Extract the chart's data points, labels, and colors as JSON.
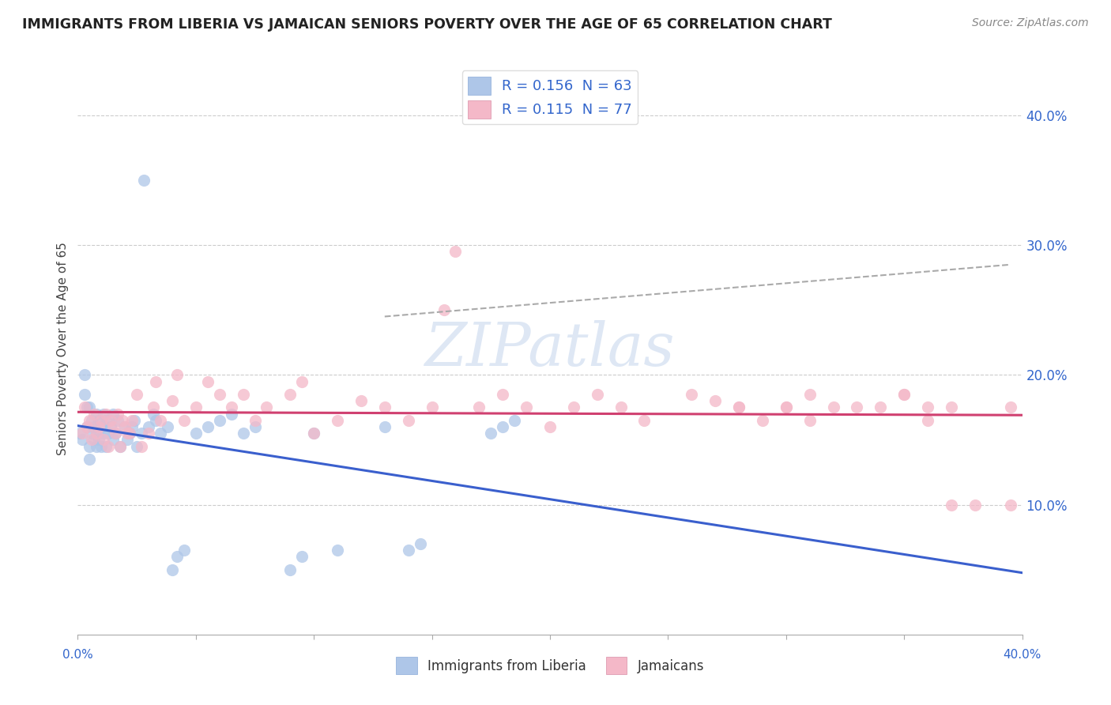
{
  "title": "IMMIGRANTS FROM LIBERIA VS JAMAICAN SENIORS POVERTY OVER THE AGE OF 65 CORRELATION CHART",
  "source": "Source: ZipAtlas.com",
  "ylabel": "Seniors Poverty Over the Age of 65",
  "legend1_text": "R = 0.156  N = 63",
  "legend2_text": "R = 0.115  N = 77",
  "legend1_face": "#aec6e8",
  "legend2_face": "#f4b8c8",
  "line1_color": "#3a5fcd",
  "line2_color": "#d04070",
  "watermark": "ZIPatlas",
  "xlim": [
    0.0,
    0.4
  ],
  "ylim": [
    0.0,
    0.44
  ],
  "background_color": "#ffffff",
  "grid_color": "#cccccc",
  "right_yticks": [
    0.1,
    0.2,
    0.3,
    0.4
  ],
  "right_ytick_labels": [
    "10.0%",
    "20.0%",
    "30.0%",
    "40.0%"
  ],
  "liberia_x": [
    0.001,
    0.002,
    0.003,
    0.003,
    0.004,
    0.004,
    0.005,
    0.005,
    0.005,
    0.006,
    0.006,
    0.007,
    0.007,
    0.008,
    0.008,
    0.008,
    0.009,
    0.009,
    0.01,
    0.01,
    0.011,
    0.011,
    0.012,
    0.012,
    0.013,
    0.014,
    0.015,
    0.015,
    0.016,
    0.017,
    0.018,
    0.02,
    0.021,
    0.022,
    0.023,
    0.024,
    0.025,
    0.027,
    0.028,
    0.03,
    0.032,
    0.033,
    0.035,
    0.038,
    0.04,
    0.042,
    0.045,
    0.05,
    0.055,
    0.06,
    0.065,
    0.07,
    0.075,
    0.09,
    0.095,
    0.1,
    0.11,
    0.13,
    0.14,
    0.145,
    0.175,
    0.18,
    0.185
  ],
  "liberia_y": [
    0.155,
    0.15,
    0.185,
    0.2,
    0.175,
    0.16,
    0.135,
    0.145,
    0.175,
    0.155,
    0.165,
    0.15,
    0.16,
    0.145,
    0.155,
    0.17,
    0.15,
    0.165,
    0.145,
    0.16,
    0.155,
    0.17,
    0.145,
    0.165,
    0.155,
    0.16,
    0.15,
    0.17,
    0.155,
    0.165,
    0.145,
    0.16,
    0.15,
    0.155,
    0.16,
    0.165,
    0.145,
    0.155,
    0.35,
    0.16,
    0.17,
    0.165,
    0.155,
    0.16,
    0.05,
    0.06,
    0.065,
    0.155,
    0.16,
    0.165,
    0.17,
    0.155,
    0.16,
    0.05,
    0.06,
    0.155,
    0.065,
    0.16,
    0.065,
    0.07,
    0.155,
    0.16,
    0.165
  ],
  "jamaican_x": [
    0.002,
    0.003,
    0.004,
    0.005,
    0.006,
    0.007,
    0.008,
    0.009,
    0.01,
    0.011,
    0.012,
    0.013,
    0.014,
    0.015,
    0.016,
    0.017,
    0.018,
    0.019,
    0.02,
    0.021,
    0.022,
    0.023,
    0.025,
    0.027,
    0.03,
    0.032,
    0.033,
    0.035,
    0.04,
    0.042,
    0.045,
    0.05,
    0.055,
    0.06,
    0.065,
    0.07,
    0.075,
    0.08,
    0.09,
    0.095,
    0.1,
    0.11,
    0.12,
    0.13,
    0.14,
    0.15,
    0.155,
    0.16,
    0.17,
    0.18,
    0.19,
    0.2,
    0.21,
    0.22,
    0.23,
    0.24,
    0.26,
    0.28,
    0.29,
    0.3,
    0.31,
    0.32,
    0.34,
    0.35,
    0.36,
    0.37,
    0.38,
    0.395,
    0.27,
    0.28,
    0.3,
    0.31,
    0.33,
    0.35,
    0.36,
    0.37,
    0.395
  ],
  "jamaican_y": [
    0.155,
    0.175,
    0.16,
    0.165,
    0.15,
    0.17,
    0.155,
    0.16,
    0.165,
    0.15,
    0.17,
    0.145,
    0.165,
    0.16,
    0.155,
    0.17,
    0.145,
    0.165,
    0.16,
    0.155,
    0.155,
    0.165,
    0.185,
    0.145,
    0.155,
    0.175,
    0.195,
    0.165,
    0.18,
    0.2,
    0.165,
    0.175,
    0.195,
    0.185,
    0.175,
    0.185,
    0.165,
    0.175,
    0.185,
    0.195,
    0.155,
    0.165,
    0.18,
    0.175,
    0.165,
    0.175,
    0.25,
    0.295,
    0.175,
    0.185,
    0.175,
    0.16,
    0.175,
    0.185,
    0.175,
    0.165,
    0.185,
    0.175,
    0.165,
    0.175,
    0.185,
    0.175,
    0.175,
    0.185,
    0.165,
    0.175,
    0.1,
    0.1,
    0.18,
    0.175,
    0.175,
    0.165,
    0.175,
    0.185,
    0.175,
    0.1,
    0.175
  ]
}
